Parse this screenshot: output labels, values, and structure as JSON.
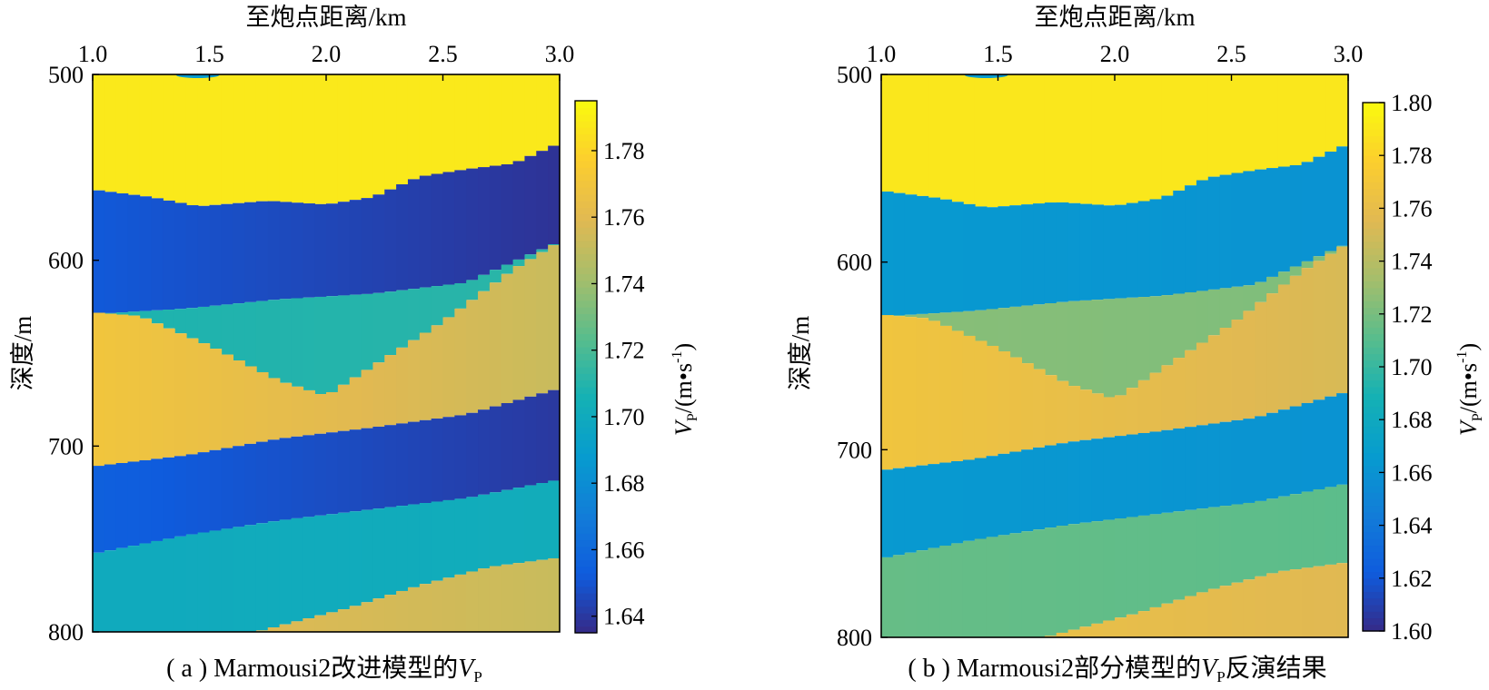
{
  "chart_data": [
    {
      "type": "heatmap",
      "panel": "a",
      "caption_prefix": "( a ) Marmousi2改进模型的",
      "caption_var": "V",
      "caption_sub": "P",
      "caption_suffix": "",
      "xlabel": "至炮点距离/km",
      "ylabel": "深度/m",
      "x_ticks": [
        "1.0",
        "1.5",
        "2.0",
        "2.5",
        "3.0"
      ],
      "xlim": [
        1.0,
        3.0
      ],
      "y_ticks": [
        "500",
        "600",
        "700",
        "800"
      ],
      "ylim": [
        500,
        800
      ],
      "colorbar": {
        "label_var": "V",
        "label_sub": "P",
        "label_unit": "/(m•s",
        "label_exp": "-1",
        "label_close": ")",
        "range": [
          1.635,
          1.795
        ],
        "ticks": [
          "1.64",
          "1.66",
          "1.68",
          "1.70",
          "1.72",
          "1.74",
          "1.76",
          "1.78"
        ],
        "colormap": "parula"
      },
      "layers": [
        {
          "name": "layer-1",
          "velocity": 1.788,
          "velocity_right": 1.788
        },
        {
          "name": "layer-2",
          "velocity": 1.652,
          "velocity_right": 1.638
        },
        {
          "name": "layer-3",
          "velocity": 1.708,
          "velocity_right": 1.712
        },
        {
          "name": "layer-4",
          "velocity": 1.77,
          "velocity_right": 1.752
        },
        {
          "name": "layer-5",
          "velocity": 1.655,
          "velocity_right": 1.64
        },
        {
          "name": "layer-6",
          "velocity": 1.7,
          "velocity_right": 1.702
        },
        {
          "name": "layer-7",
          "velocity": 1.762,
          "velocity_right": 1.752
        }
      ]
    },
    {
      "type": "heatmap",
      "panel": "b",
      "caption_prefix": "( b ) Marmousi2部分模型的",
      "caption_var": "V",
      "caption_sub": "P",
      "caption_suffix": "反演结果",
      "xlabel": "至炮点距离/km",
      "ylabel": "深度/m",
      "x_ticks": [
        "1.0",
        "1.5",
        "2.0",
        "2.5",
        "3.0"
      ],
      "xlim": [
        1.0,
        3.0
      ],
      "y_ticks": [
        "500",
        "600",
        "700",
        "800"
      ],
      "ylim": [
        500,
        800
      ],
      "colorbar": {
        "label_var": "V",
        "label_sub": "P",
        "label_unit": "/(m•s",
        "label_exp": "-1",
        "label_close": ")",
        "range": [
          1.6,
          1.8
        ],
        "ticks": [
          "1.60",
          "1.62",
          "1.64",
          "1.66",
          "1.68",
          "1.70",
          "1.72",
          "1.74",
          "1.76",
          "1.78",
          "1.80"
        ],
        "colormap": "parula"
      },
      "layers": [
        {
          "name": "layer-1",
          "velocity": 1.79,
          "velocity_right": 1.79
        },
        {
          "name": "layer-2",
          "velocity": 1.665,
          "velocity_right": 1.66
        },
        {
          "name": "layer-3",
          "velocity": 1.725,
          "velocity_right": 1.722
        },
        {
          "name": "layer-4",
          "velocity": 1.768,
          "velocity_right": 1.752
        },
        {
          "name": "layer-5",
          "velocity": 1.665,
          "velocity_right": 1.66
        },
        {
          "name": "layer-6",
          "velocity": 1.715,
          "velocity_right": 1.712
        },
        {
          "name": "layer-7",
          "velocity": 1.766,
          "velocity_right": 1.755
        }
      ]
    }
  ]
}
